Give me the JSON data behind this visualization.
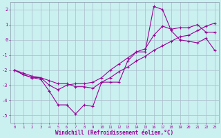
{
  "xlabel": "Windchill (Refroidissement éolien,°C)",
  "background_color": "#caf0f0",
  "grid_color": "#aabbcc",
  "line_color": "#990099",
  "ylim": [
    -5.5,
    2.5
  ],
  "xlim": [
    -0.5,
    23.5
  ],
  "yticks": [
    -5,
    -4,
    -3,
    -2,
    -1,
    0,
    1,
    2
  ],
  "xticks": [
    0,
    1,
    2,
    3,
    4,
    5,
    6,
    7,
    8,
    9,
    10,
    11,
    12,
    13,
    14,
    15,
    16,
    17,
    18,
    19,
    20,
    21,
    22,
    23
  ],
  "line1_x": [
    0,
    1,
    2,
    3,
    4,
    5,
    6,
    7,
    8,
    9,
    10,
    11,
    12,
    13,
    14,
    15,
    16,
    17,
    18,
    19,
    20,
    21,
    22,
    23
  ],
  "line1_y": [
    -2.0,
    -2.3,
    -2.5,
    -2.6,
    -3.4,
    -4.3,
    -4.3,
    -4.9,
    -4.3,
    -4.4,
    -2.8,
    -2.8,
    -2.8,
    -1.4,
    -0.8,
    -0.8,
    2.2,
    2.0,
    0.6,
    0.0,
    -0.1,
    -0.2,
    0.1,
    -0.7
  ],
  "line2_x": [
    0,
    1,
    2,
    3,
    4,
    5,
    6,
    7,
    8,
    9,
    10,
    11,
    12,
    13,
    14,
    15,
    16,
    17,
    18,
    19,
    20,
    21,
    22,
    23
  ],
  "line2_y": [
    -2.0,
    -2.3,
    -2.5,
    -2.5,
    -3.0,
    -3.3,
    -3.0,
    -2.9,
    -2.9,
    -2.8,
    -2.5,
    -2.0,
    -1.6,
    -1.2,
    -0.8,
    -0.6,
    0.3,
    0.9,
    0.7,
    0.8,
    0.8,
    1.0,
    0.5,
    0.5
  ],
  "line3_x": [
    0,
    1,
    2,
    3,
    4,
    5,
    6,
    7,
    8,
    9,
    10,
    11,
    12,
    13,
    14,
    15,
    16,
    17,
    18,
    19,
    20,
    21,
    22,
    23
  ],
  "line3_y": [
    -2.0,
    -2.2,
    -2.4,
    -2.5,
    -2.7,
    -2.9,
    -2.9,
    -3.1,
    -3.1,
    -3.2,
    -2.8,
    -2.5,
    -2.1,
    -1.8,
    -1.4,
    -1.1,
    -0.7,
    -0.4,
    -0.1,
    0.2,
    0.3,
    0.6,
    0.9,
    1.1
  ]
}
